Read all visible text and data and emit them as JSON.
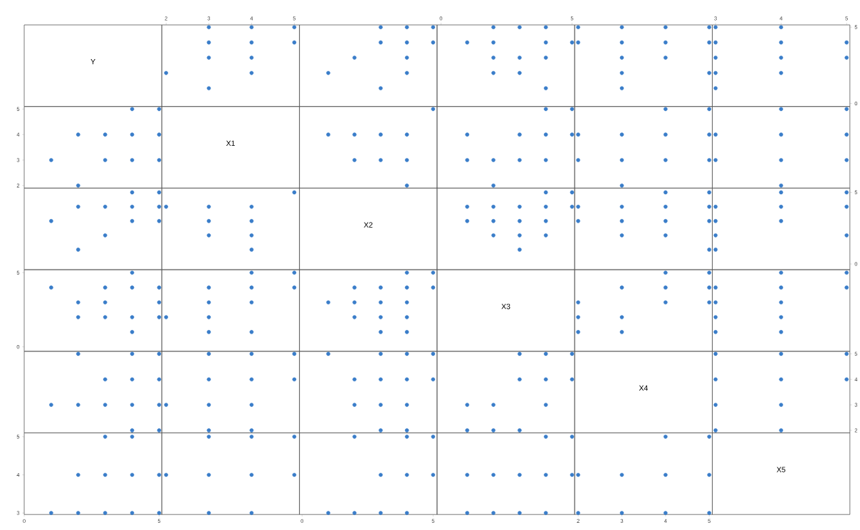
{
  "chart_data": [
    {
      "type": "other",
      "title": "Y"
    },
    {
      "type": "scatter",
      "x": [
        2,
        3,
        3,
        3,
        3,
        4,
        4,
        4,
        4,
        5,
        5
      ],
      "values": [
        2,
        5,
        4,
        3,
        1,
        5,
        4,
        3,
        2,
        5,
        4
      ],
      "color": "#3a7dc9",
      "marker": "circle",
      "xlim": [
        1.9,
        5.12
      ],
      "ylim": [
        -0.2,
        5.15
      ],
      "xticks": [
        2,
        3,
        4,
        5
      ],
      "yticks": [
        0,
        5
      ],
      "tick_labels": "x"
    },
    {
      "type": "scatter",
      "x": [
        3,
        4,
        5,
        3,
        4,
        5,
        2,
        4,
        1,
        4,
        3
      ],
      "values": [
        5,
        5,
        5,
        4,
        4,
        4,
        3,
        3,
        2,
        2,
        1
      ],
      "color": "#3a7dc9",
      "marker": "circle",
      "xlim": [
        -0.1,
        5.15
      ],
      "ylim": [
        -0.2,
        5.15
      ],
      "xticks": [
        0,
        5
      ],
      "yticks": [
        0,
        5
      ],
      "tick_labels": false
    },
    {
      "type": "scatter",
      "x": [
        2,
        3,
        4,
        1,
        2,
        4,
        5,
        2,
        3,
        4,
        2,
        3,
        4
      ],
      "values": [
        5,
        5,
        5,
        4,
        4,
        4,
        4,
        3,
        3,
        3,
        2,
        2,
        1
      ],
      "color": "#3a7dc9",
      "marker": "circle",
      "xlim": [
        -0.15,
        5.1
      ],
      "ylim": [
        -0.2,
        5.15
      ],
      "xticks": [
        0,
        5
      ],
      "yticks": [
        0,
        5
      ],
      "tick_labels": "x"
    },
    {
      "type": "scatter",
      "x": [
        2,
        2,
        3,
        3,
        3,
        3,
        3,
        4,
        4,
        4,
        5,
        5,
        5
      ],
      "values": [
        5,
        4,
        5,
        4,
        3,
        2,
        1,
        5,
        4,
        3,
        5,
        4,
        2
      ],
      "color": "#3a7dc9",
      "marker": "circle",
      "xlim": [
        1.92,
        5.07
      ],
      "ylim": [
        -0.2,
        5.15
      ],
      "xticks": [
        2,
        3,
        4,
        5
      ],
      "yticks": [
        0,
        5
      ],
      "tick_labels": false
    },
    {
      "type": "scatter",
      "x": [
        3,
        3,
        3,
        3,
        3,
        4,
        4,
        4,
        4,
        5,
        5
      ],
      "values": [
        5,
        4,
        3,
        2,
        1,
        5,
        4,
        3,
        2,
        4,
        3
      ],
      "color": "#3a7dc9",
      "marker": "circle",
      "xlim": [
        2.95,
        5.05
      ],
      "ylim": [
        -0.2,
        5.15
      ],
      "xticks": [
        3,
        4,
        5
      ],
      "yticks": [
        0,
        5
      ]
    },
    {
      "type": "scatter",
      "x": [
        4,
        5,
        2,
        3,
        4,
        5,
        1,
        3,
        4,
        5,
        2
      ],
      "values": [
        5,
        5,
        4,
        4,
        4,
        4,
        3,
        3,
        3,
        3,
        2
      ],
      "color": "#3a7dc9",
      "marker": "circle",
      "xlim": [
        0,
        5.1
      ],
      "ylim": [
        1.9,
        5.1
      ],
      "xticks": [
        0,
        5
      ],
      "yticks": [
        2,
        3,
        4,
        5
      ],
      "tick_labels": "y"
    },
    {
      "type": "other",
      "title": "X1"
    },
    {
      "type": "scatter",
      "x": [
        5,
        1,
        2,
        3,
        4,
        2,
        3,
        4,
        4
      ],
      "values": [
        5,
        4,
        4,
        4,
        4,
        3,
        3,
        3,
        2
      ],
      "color": "#3a7dc9",
      "marker": "circle",
      "xlim": [
        -0.1,
        5.15
      ],
      "ylim": [
        1.9,
        5.1
      ],
      "xticks": [
        0,
        5
      ],
      "yticks": [
        2,
        3,
        4,
        5
      ],
      "tick_labels": false
    },
    {
      "type": "scatter",
      "x": [
        4,
        5,
        1,
        3,
        4,
        5,
        1,
        2,
        3,
        4,
        2
      ],
      "values": [
        5,
        5,
        4,
        4,
        4,
        4,
        3,
        3,
        3,
        3,
        2
      ],
      "color": "#3a7dc9",
      "marker": "circle",
      "xlim": [
        -0.15,
        5.1
      ],
      "ylim": [
        1.9,
        5.1
      ],
      "xticks": [
        0,
        5
      ],
      "yticks": [
        2,
        3,
        4,
        5
      ],
      "tick_labels": false
    },
    {
      "type": "scatter",
      "x": [
        4,
        5,
        2,
        3,
        4,
        5,
        2,
        3,
        4,
        5,
        3
      ],
      "values": [
        5,
        5,
        4,
        4,
        4,
        4,
        3,
        3,
        3,
        3,
        2
      ],
      "color": "#3a7dc9",
      "marker": "circle",
      "xlim": [
        1.92,
        5.07
      ],
      "ylim": [
        1.9,
        5.1
      ],
      "xticks": [
        2,
        3,
        4,
        5
      ],
      "yticks": [
        2,
        3,
        4,
        5
      ],
      "tick_labels": false
    },
    {
      "type": "scatter",
      "x": [
        4,
        5,
        3,
        4,
        5,
        3,
        4,
        5,
        4
      ],
      "values": [
        5,
        5,
        4,
        4,
        4,
        3,
        3,
        3,
        2
      ],
      "color": "#3a7dc9",
      "marker": "circle",
      "xlim": [
        2.95,
        5.05
      ],
      "ylim": [
        1.9,
        5.1
      ],
      "xticks": [
        3,
        4,
        5
      ],
      "yticks": [
        2,
        3,
        4,
        5
      ],
      "tick_labels": false
    },
    {
      "type": "scatter",
      "x": [
        4,
        5,
        2,
        3,
        4,
        5,
        1,
        4,
        5,
        3,
        2
      ],
      "values": [
        5,
        5,
        4,
        4,
        4,
        4,
        3,
        3,
        3,
        2,
        1
      ],
      "color": "#3a7dc9",
      "marker": "circle",
      "xlim": [
        0,
        5.1
      ],
      "ylim": [
        -0.4,
        5.3
      ],
      "xticks": [
        0,
        5
      ],
      "yticks": [
        0,
        5
      ],
      "tick_labels": false
    },
    {
      "type": "scatter",
      "x": [
        5,
        2,
        3,
        4,
        3,
        4,
        3,
        4,
        4
      ],
      "values": [
        5,
        4,
        4,
        4,
        3,
        3,
        2,
        2,
        1
      ],
      "color": "#3a7dc9",
      "marker": "circle",
      "xlim": [
        1.9,
        5.12
      ],
      "ylim": [
        -0.4,
        5.3
      ],
      "xticks": [
        2,
        3,
        4,
        5
      ],
      "yticks": [
        0,
        5
      ],
      "tick_labels": false
    },
    {
      "type": "other",
      "title": "X2"
    },
    {
      "type": "scatter",
      "x": [
        4,
        5,
        1,
        2,
        3,
        4,
        5,
        1,
        2,
        3,
        4,
        2,
        3,
        4,
        3
      ],
      "values": [
        5,
        5,
        4,
        4,
        4,
        4,
        4,
        3,
        3,
        3,
        3,
        2,
        2,
        2,
        1
      ],
      "color": "#3a7dc9",
      "marker": "circle",
      "xlim": [
        -0.15,
        5.1
      ],
      "ylim": [
        -0.4,
        5.3
      ],
      "xticks": [
        0,
        5
      ],
      "yticks": [
        0,
        5
      ],
      "tick_labels": false
    },
    {
      "type": "scatter",
      "x": [
        4,
        5,
        2,
        3,
        4,
        5,
        2,
        3,
        4,
        5,
        3,
        4,
        5
      ],
      "values": [
        5,
        5,
        4,
        4,
        4,
        4,
        3,
        3,
        3,
        3,
        2,
        2,
        1
      ],
      "color": "#3a7dc9",
      "marker": "circle",
      "xlim": [
        1.92,
        5.07
      ],
      "ylim": [
        -0.4,
        5.3
      ],
      "xticks": [
        2,
        3,
        4,
        5
      ],
      "yticks": [
        0,
        5
      ],
      "tick_labels": false
    },
    {
      "type": "scatter",
      "x": [
        4,
        5,
        3,
        4,
        5,
        3,
        4,
        3,
        5,
        3
      ],
      "values": [
        5,
        5,
        4,
        4,
        4,
        3,
        3,
        2,
        2,
        1
      ],
      "color": "#3a7dc9",
      "marker": "circle",
      "xlim": [
        2.95,
        5.05
      ],
      "ylim": [
        -0.4,
        5.3
      ],
      "xticks": [
        3,
        4,
        5
      ],
      "yticks": [
        0,
        5
      ],
      "tick_labels": "y"
    },
    {
      "type": "scatter",
      "x": [
        4,
        1,
        3,
        4,
        5,
        2,
        3,
        5,
        2,
        3,
        4,
        5,
        4
      ],
      "values": [
        5,
        4,
        4,
        4,
        4,
        3,
        3,
        3,
        2,
        2,
        2,
        2,
        1
      ],
      "color": "#3a7dc9",
      "marker": "circle",
      "xlim": [
        0,
        5.1
      ],
      "ylim": [
        -0.3,
        5.2
      ],
      "xticks": [
        0,
        5
      ],
      "yticks": [
        0,
        5
      ],
      "tick_labels": "y"
    },
    {
      "type": "scatter",
      "x": [
        4,
        5,
        3,
        4,
        5,
        3,
        4,
        2,
        3,
        3,
        4
      ],
      "values": [
        5,
        5,
        4,
        4,
        4,
        3,
        3,
        2,
        2,
        1,
        1
      ],
      "color": "#3a7dc9",
      "marker": "circle",
      "xlim": [
        1.9,
        5.12
      ],
      "ylim": [
        -0.3,
        5.2
      ],
      "xticks": [
        2,
        3,
        4,
        5
      ],
      "yticks": [
        0,
        5
      ],
      "tick_labels": false
    },
    {
      "type": "scatter",
      "x": [
        4,
        5,
        2,
        3,
        4,
        5,
        1,
        2,
        3,
        4,
        2,
        3,
        4,
        3,
        4
      ],
      "values": [
        5,
        5,
        4,
        4,
        4,
        4,
        3,
        3,
        3,
        3,
        2,
        2,
        2,
        1,
        1
      ],
      "color": "#3a7dc9",
      "marker": "circle",
      "xlim": [
        -0.1,
        5.15
      ],
      "ylim": [
        -0.3,
        5.2
      ],
      "xticks": [
        0,
        5
      ],
      "yticks": [
        0,
        5
      ],
      "tick_labels": false
    },
    {
      "type": "other",
      "title": "X3"
    },
    {
      "type": "scatter",
      "x": [
        4,
        5,
        3,
        4,
        5,
        2,
        4,
        5,
        2,
        3,
        2,
        3
      ],
      "values": [
        5,
        5,
        4,
        4,
        4,
        3,
        3,
        3,
        2,
        2,
        1,
        1
      ],
      "color": "#3a7dc9",
      "marker": "circle",
      "xlim": [
        1.92,
        5.07
      ],
      "ylim": [
        -0.3,
        5.2
      ],
      "xticks": [
        2,
        3,
        4,
        5
      ],
      "yticks": [
        0,
        5
      ],
      "tick_labels": false
    },
    {
      "type": "scatter",
      "x": [
        4,
        5,
        3,
        4,
        5,
        3,
        4,
        3,
        4,
        3,
        4
      ],
      "values": [
        5,
        5,
        4,
        4,
        4,
        3,
        3,
        2,
        2,
        1,
        1
      ],
      "color": "#3a7dc9",
      "marker": "circle",
      "xlim": [
        2.95,
        5.05
      ],
      "ylim": [
        -0.3,
        5.2
      ],
      "xticks": [
        3,
        4,
        5
      ],
      "yticks": [
        0,
        5
      ],
      "tick_labels": false
    },
    {
      "type": "scatter",
      "x": [
        2,
        4,
        5,
        3,
        4,
        5,
        1,
        2,
        3,
        4,
        5,
        4,
        5
      ],
      "values": [
        5,
        5,
        5,
        4,
        4,
        4,
        3,
        3,
        3,
        3,
        3,
        2,
        2
      ],
      "color": "#3a7dc9",
      "marker": "circle",
      "xlim": [
        0,
        5.1
      ],
      "ylim": [
        1.9,
        5.1
      ],
      "xticks": [
        0,
        5
      ],
      "yticks": [
        2,
        3,
        4,
        5
      ],
      "tick_labels": false
    },
    {
      "type": "scatter",
      "x": [
        3,
        4,
        5,
        3,
        4,
        5,
        2,
        3,
        4,
        3,
        4
      ],
      "values": [
        5,
        5,
        5,
        4,
        4,
        4,
        3,
        3,
        3,
        2,
        2
      ],
      "color": "#3a7dc9",
      "marker": "circle",
      "xlim": [
        1.9,
        5.12
      ],
      "ylim": [
        1.9,
        5.1
      ],
      "xticks": [
        2,
        3,
        4,
        5
      ],
      "yticks": [
        2,
        3,
        4,
        5
      ],
      "tick_labels": false
    },
    {
      "type": "scatter",
      "x": [
        1,
        3,
        4,
        5,
        2,
        3,
        4,
        5,
        2,
        3,
        4,
        3,
        4
      ],
      "values": [
        5,
        5,
        5,
        5,
        4,
        4,
        4,
        4,
        3,
        3,
        3,
        2,
        2
      ],
      "color": "#3a7dc9",
      "marker": "circle",
      "xlim": [
        -0.1,
        5.15
      ],
      "ylim": [
        1.9,
        5.1
      ],
      "xticks": [
        0,
        5
      ],
      "yticks": [
        2,
        3,
        4,
        5
      ],
      "tick_labels": false
    },
    {
      "type": "scatter",
      "x": [
        3,
        4,
        5,
        3,
        4,
        5,
        1,
        2,
        4,
        1,
        2,
        3
      ],
      "values": [
        5,
        5,
        5,
        4,
        4,
        4,
        3,
        3,
        3,
        2,
        2,
        2
      ],
      "color": "#3a7dc9",
      "marker": "circle",
      "xlim": [
        -0.15,
        5.1
      ],
      "ylim": [
        1.9,
        5.1
      ],
      "xticks": [
        0,
        5
      ],
      "yticks": [
        2,
        3,
        4,
        5
      ],
      "tick_labels": false
    },
    {
      "type": "other",
      "title": "X4"
    },
    {
      "type": "scatter",
      "x": [
        3,
        4,
        5,
        3,
        4,
        5,
        3,
        4,
        3,
        4
      ],
      "values": [
        5,
        5,
        5,
        4,
        4,
        4,
        3,
        3,
        2,
        2
      ],
      "color": "#3a7dc9",
      "marker": "circle",
      "xlim": [
        2.95,
        5.05
      ],
      "ylim": [
        1.9,
        5.1
      ],
      "xticks": [
        3,
        4,
        5
      ],
      "yticks": [
        2,
        3,
        4,
        5
      ],
      "tick_labels": "y"
    },
    {
      "type": "scatter",
      "x": [
        3,
        4,
        2,
        3,
        4,
        5,
        1,
        2,
        3,
        4,
        5
      ],
      "values": [
        5,
        5,
        4,
        4,
        4,
        4,
        3,
        3,
        3,
        3,
        3
      ],
      "color": "#3a7dc9",
      "marker": "circle",
      "xlim": [
        0,
        5.1
      ],
      "ylim": [
        2.96,
        5.1
      ],
      "xticks": [
        0,
        5
      ],
      "yticks": [
        3,
        4,
        5
      ]
    },
    {
      "type": "scatter",
      "x": [
        3,
        4,
        5,
        2,
        3,
        4,
        5,
        3,
        4
      ],
      "values": [
        5,
        5,
        5,
        4,
        4,
        4,
        4,
        3,
        3
      ],
      "color": "#3a7dc9",
      "marker": "circle",
      "xlim": [
        1.9,
        5.12
      ],
      "ylim": [
        2.96,
        5.1
      ],
      "xticks": [
        2,
        3,
        4,
        5
      ],
      "yticks": [
        3,
        4,
        5
      ],
      "tick_labels": false
    },
    {
      "type": "scatter",
      "x": [
        2,
        4,
        5,
        3,
        4,
        5,
        1,
        2,
        3,
        4
      ],
      "values": [
        5,
        5,
        5,
        4,
        4,
        4,
        3,
        3,
        3,
        3
      ],
      "color": "#3a7dc9",
      "marker": "circle",
      "xlim": [
        -0.1,
        5.15
      ],
      "ylim": [
        2.96,
        5.1
      ],
      "xticks": [
        0,
        5
      ],
      "yticks": [
        3,
        4,
        5
      ],
      "tick_labels": "x"
    },
    {
      "type": "scatter",
      "x": [
        4,
        5,
        1,
        2,
        3,
        4,
        5,
        1,
        2,
        3,
        4
      ],
      "values": [
        5,
        5,
        4,
        4,
        4,
        4,
        4,
        3,
        3,
        3,
        3
      ],
      "color": "#3a7dc9",
      "marker": "circle",
      "xlim": [
        -0.15,
        5.1
      ],
      "ylim": [
        2.96,
        5.1
      ],
      "xticks": [
        0,
        5
      ],
      "yticks": [
        3,
        4,
        5
      ],
      "tick_labels": false
    },
    {
      "type": "scatter",
      "x": [
        4,
        5,
        2,
        3,
        4,
        5,
        2,
        3,
        4,
        5
      ],
      "values": [
        5,
        5,
        4,
        4,
        4,
        4,
        3,
        3,
        3,
        3
      ],
      "color": "#3a7dc9",
      "marker": "circle",
      "xlim": [
        1.92,
        5.07
      ],
      "ylim": [
        2.96,
        5.1
      ],
      "xticks": [
        2,
        3,
        4,
        5
      ],
      "yticks": [
        3,
        4,
        5
      ],
      "tick_labels": "x"
    },
    {
      "type": "other",
      "title": "X5"
    }
  ]
}
